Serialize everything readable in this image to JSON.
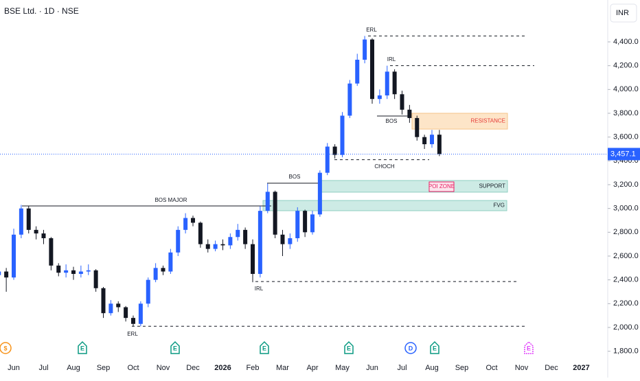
{
  "header": {
    "symbol": "BSE Ltd. · 1D · NSE",
    "currency": "INR"
  },
  "chart_data": {
    "type": "candlestick",
    "categories": [
      null,
      null,
      "Jun",
      null,
      null,
      null,
      "Jul",
      null,
      null,
      null,
      "Aug",
      null,
      null,
      null,
      "Sep",
      null,
      null,
      null,
      "Oct",
      null,
      null,
      null,
      "Nov",
      null,
      null,
      null,
      "Dec",
      null,
      null,
      null,
      "2026",
      null,
      null,
      null,
      "Feb",
      null,
      null,
      null,
      "Mar",
      null,
      null,
      null,
      "Apr",
      null,
      null,
      null,
      "May",
      null,
      null,
      null,
      "Jun",
      null,
      null,
      null,
      "Jul",
      null,
      null,
      null,
      "Aug",
      null,
      null,
      null,
      "Sep",
      null,
      null,
      null,
      "Oct",
      null,
      null,
      null,
      "Nov",
      null,
      null,
      null,
      "Dec",
      null,
      null,
      null,
      "2027",
      null,
      null
    ],
    "open": [
      2440,
      2470,
      2420,
      2780,
      3000,
      2820,
      2790,
      2750,
      2520,
      2460,
      2480,
      2450,
      2470,
      2480,
      2330,
      2120,
      2200,
      2170,
      2080,
      2030,
      2200,
      2400,
      2500,
      2470,
      2630,
      2820,
      2920,
      2880,
      2700,
      2660,
      2700,
      2690,
      2760,
      2820,
      2700,
      2450,
      2980,
      3140,
      2780,
      2700,
      2750,
      2980,
      2800,
      2950,
      3300,
      3520,
      3450,
      3780,
      4050,
      4250,
      4420,
      3920,
      3950,
      4150,
      3960,
      3830,
      3760,
      3600,
      3540,
      3620,
      null,
      null,
      null,
      null,
      null,
      null,
      null,
      null,
      null,
      null,
      null,
      null,
      null,
      null,
      null,
      null,
      null,
      null,
      null,
      null,
      null
    ],
    "high": [
      2510,
      2500,
      2830,
      3030,
      3020,
      2850,
      2820,
      2760,
      2540,
      2530,
      2510,
      2520,
      2530,
      2490,
      2340,
      2230,
      2220,
      2180,
      2100,
      2220,
      2420,
      2540,
      2520,
      2660,
      2850,
      2960,
      2940,
      2890,
      2740,
      2730,
      2740,
      2790,
      2870,
      2840,
      2740,
      3020,
      3210,
      3150,
      2820,
      2790,
      3010,
      2990,
      2980,
      3320,
      3550,
      3540,
      3810,
      4080,
      4300,
      4450,
      4430,
      4000,
      4200,
      4170,
      3990,
      3870,
      3780,
      3620,
      3660,
      3660,
      null,
      null,
      null,
      null,
      null,
      null,
      null,
      null,
      null,
      null,
      null,
      null,
      null,
      null,
      null,
      null,
      null,
      null,
      null,
      null,
      null
    ],
    "low": [
      2380,
      2300,
      2400,
      2750,
      2790,
      2740,
      2700,
      2480,
      2430,
      2420,
      2400,
      2420,
      2440,
      2300,
      2080,
      2100,
      2130,
      2050,
      2010,
      2010,
      2170,
      2380,
      2440,
      2450,
      2600,
      2790,
      2850,
      2670,
      2630,
      2640,
      2650,
      2660,
      2730,
      2660,
      2380,
      2420,
      2960,
      2750,
      2600,
      2660,
      2720,
      2760,
      2780,
      2930,
      3280,
      3420,
      3430,
      3760,
      4030,
      4220,
      3880,
      3880,
      3920,
      3920,
      3790,
      3720,
      3570,
      3500,
      3510,
      3440,
      null,
      null,
      null,
      null,
      null,
      null,
      null,
      null,
      null,
      null,
      null,
      null,
      null,
      null,
      null,
      null,
      null,
      null,
      null,
      null,
      null
    ],
    "close": [
      2470,
      2420,
      2780,
      3000,
      2820,
      2790,
      2750,
      2520,
      2460,
      2480,
      2450,
      2470,
      2480,
      2330,
      2120,
      2200,
      2170,
      2080,
      2030,
      2200,
      2400,
      2500,
      2470,
      2630,
      2820,
      2920,
      2880,
      2700,
      2660,
      2700,
      2690,
      2760,
      2820,
      2700,
      2450,
      2980,
      3140,
      2780,
      2700,
      2750,
      2980,
      2800,
      2950,
      3300,
      3520,
      3450,
      3780,
      4050,
      4250,
      4420,
      3920,
      3950,
      4150,
      3960,
      3830,
      3760,
      3600,
      3540,
      3620,
      3457.1,
      null,
      null,
      null,
      null,
      null,
      null,
      null,
      null,
      null,
      null,
      null,
      null,
      null,
      null,
      null,
      null,
      null,
      null,
      null,
      null,
      null
    ],
    "up_color": "#2962ff",
    "down_color": "#131722",
    "ylim": [
      1723,
      4752
    ],
    "yticks": [
      {
        "value": 1800,
        "label": "1,800.0"
      },
      {
        "value": 2000,
        "label": "2,000.0"
      },
      {
        "value": 2200,
        "label": "2,200.0"
      },
      {
        "value": 2400,
        "label": "2,400.0"
      },
      {
        "value": 2600,
        "label": "2,600.0"
      },
      {
        "value": 2800,
        "label": "2,800.0"
      },
      {
        "value": 3000,
        "label": "3,000.0"
      },
      {
        "value": 3200,
        "label": "3,200.0"
      },
      {
        "value": 3400,
        "label": "3,400.0"
      },
      {
        "value": 3600,
        "label": "3,600.0"
      },
      {
        "value": 3800,
        "label": "3,800.0"
      },
      {
        "value": 4000,
        "label": "4,000.0"
      },
      {
        "value": 4200,
        "label": "4,200.0"
      },
      {
        "value": 4400,
        "label": "4,400.0"
      }
    ],
    "last_price": {
      "value": 3457.1,
      "label": "3,457.1"
    },
    "annotations": [
      {
        "label": "ERL",
        "price": 4450,
        "style": "dashed"
      },
      {
        "label": "IRL",
        "price": 4200,
        "style": "dashed"
      },
      {
        "label": "BOS",
        "price": 3777,
        "style": "solid"
      },
      {
        "label": "CHOCH",
        "price": 3410,
        "style": "dashed"
      },
      {
        "label": "BOS",
        "price": 3212,
        "style": "solid"
      },
      {
        "label": "BOS MAJOR",
        "price": 3021,
        "style": "solid"
      },
      {
        "label": "IRL",
        "price": 2386,
        "style": "dashed"
      },
      {
        "label": "ERL",
        "price": 2010,
        "style": "dashed"
      }
    ],
    "zones": [
      {
        "label": "RESISTANCE",
        "top": 3800,
        "bottom": 3667,
        "fill": "#fde5c8",
        "text_color": "#e53935"
      },
      {
        "label": "SUPPORT",
        "top": 3235,
        "bottom": 3137,
        "fill": "#cdebe5",
        "text_color": "#131722"
      },
      {
        "label": "FVG",
        "top": 3067,
        "bottom": 2981,
        "fill": "#cdebe5",
        "text_color": "#131722"
      }
    ],
    "tags": [
      {
        "label": "POI ZONE",
        "color": "#e91e63"
      }
    ],
    "events": [
      {
        "label": "$",
        "color": "#f7931a"
      },
      {
        "label": "E",
        "color": "#089981"
      },
      {
        "label": "E",
        "color": "#089981"
      },
      {
        "label": "E",
        "color": "#089981"
      },
      {
        "label": "E",
        "color": "#089981"
      },
      {
        "label": "D",
        "color": "#2962ff"
      },
      {
        "label": "E",
        "color": "#089981"
      },
      {
        "label": "E",
        "color": "#e040fb"
      }
    ]
  }
}
